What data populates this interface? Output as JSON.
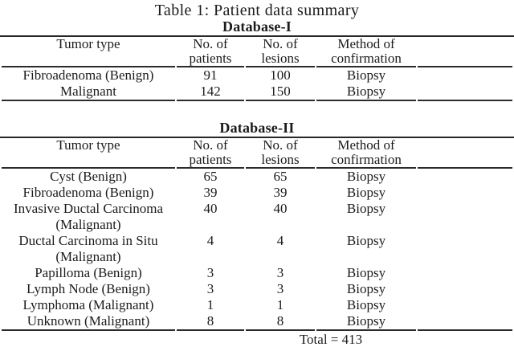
{
  "caption": "Table 1: Patient data summary",
  "colors": {
    "background": "#ffffff",
    "text": "#1b1b1b",
    "rule": "#2b2b2b"
  },
  "table": {
    "headers": {
      "tumor_type": "Tumor type",
      "patients": "No. of patients",
      "lesions": "No. of lesions",
      "confirmation": "Method of confirmation"
    },
    "sections": [
      {
        "name": "Database-I",
        "rows": [
          {
            "tumor_type": "Fibroadenoma (Benign)",
            "patients": "91",
            "lesions": "100",
            "confirmation": "Biopsy"
          },
          {
            "tumor_type": "Malignant",
            "patients": "142",
            "lesions": "150",
            "confirmation": "Biopsy"
          }
        ]
      },
      {
        "name": "Database-II",
        "rows": [
          {
            "tumor_type": "Cyst (Benign)",
            "patients": "65",
            "lesions": "65",
            "confirmation": "Biopsy"
          },
          {
            "tumor_type": "Fibroadenoma (Benign)",
            "patients": "39",
            "lesions": "39",
            "confirmation": "Biopsy"
          },
          {
            "tumor_type": "Invasive Ductal Carcinoma (Malignant)",
            "patients": "40",
            "lesions": "40",
            "confirmation": "Biopsy"
          },
          {
            "tumor_type": "Ductal Carcinoma in Situ (Malignant)",
            "patients": "4",
            "lesions": "4",
            "confirmation": "Biopsy"
          },
          {
            "tumor_type": "Papilloma (Benign)",
            "patients": "3",
            "lesions": "3",
            "confirmation": "Biopsy"
          },
          {
            "tumor_type": "Lymph Node (Benign)",
            "patients": "3",
            "lesions": "3",
            "confirmation": "Biopsy"
          },
          {
            "tumor_type": "Lymphoma (Malignant)",
            "patients": "1",
            "lesions": "1",
            "confirmation": "Biopsy"
          },
          {
            "tumor_type": "Unknown (Malignant)",
            "patients": "8",
            "lesions": "8",
            "confirmation": "Biopsy"
          }
        ]
      }
    ],
    "total": "Total = 413"
  },
  "chart_data": {
    "type": "table",
    "title": "Table 1: Patient data summary",
    "columns": [
      "Tumor type",
      "No. of patients",
      "No. of lesions",
      "Method of confirmation"
    ],
    "sections": [
      {
        "name": "Database-I",
        "rows": [
          [
            "Fibroadenoma (Benign)",
            91,
            100,
            "Biopsy"
          ],
          [
            "Malignant",
            142,
            150,
            "Biopsy"
          ]
        ]
      },
      {
        "name": "Database-II",
        "rows": [
          [
            "Cyst (Benign)",
            65,
            65,
            "Biopsy"
          ],
          [
            "Fibroadenoma (Benign)",
            39,
            39,
            "Biopsy"
          ],
          [
            "Invasive Ductal Carcinoma (Malignant)",
            40,
            40,
            "Biopsy"
          ],
          [
            "Ductal Carcinoma in Situ (Malignant)",
            4,
            4,
            "Biopsy"
          ],
          [
            "Papilloma (Benign)",
            3,
            3,
            "Biopsy"
          ],
          [
            "Lymph Node (Benign)",
            3,
            3,
            "Biopsy"
          ],
          [
            "Lymphoma (Malignant)",
            1,
            1,
            "Biopsy"
          ],
          [
            "Unknown (Malignant)",
            8,
            8,
            "Biopsy"
          ]
        ]
      }
    ],
    "total_lesions": 413
  }
}
